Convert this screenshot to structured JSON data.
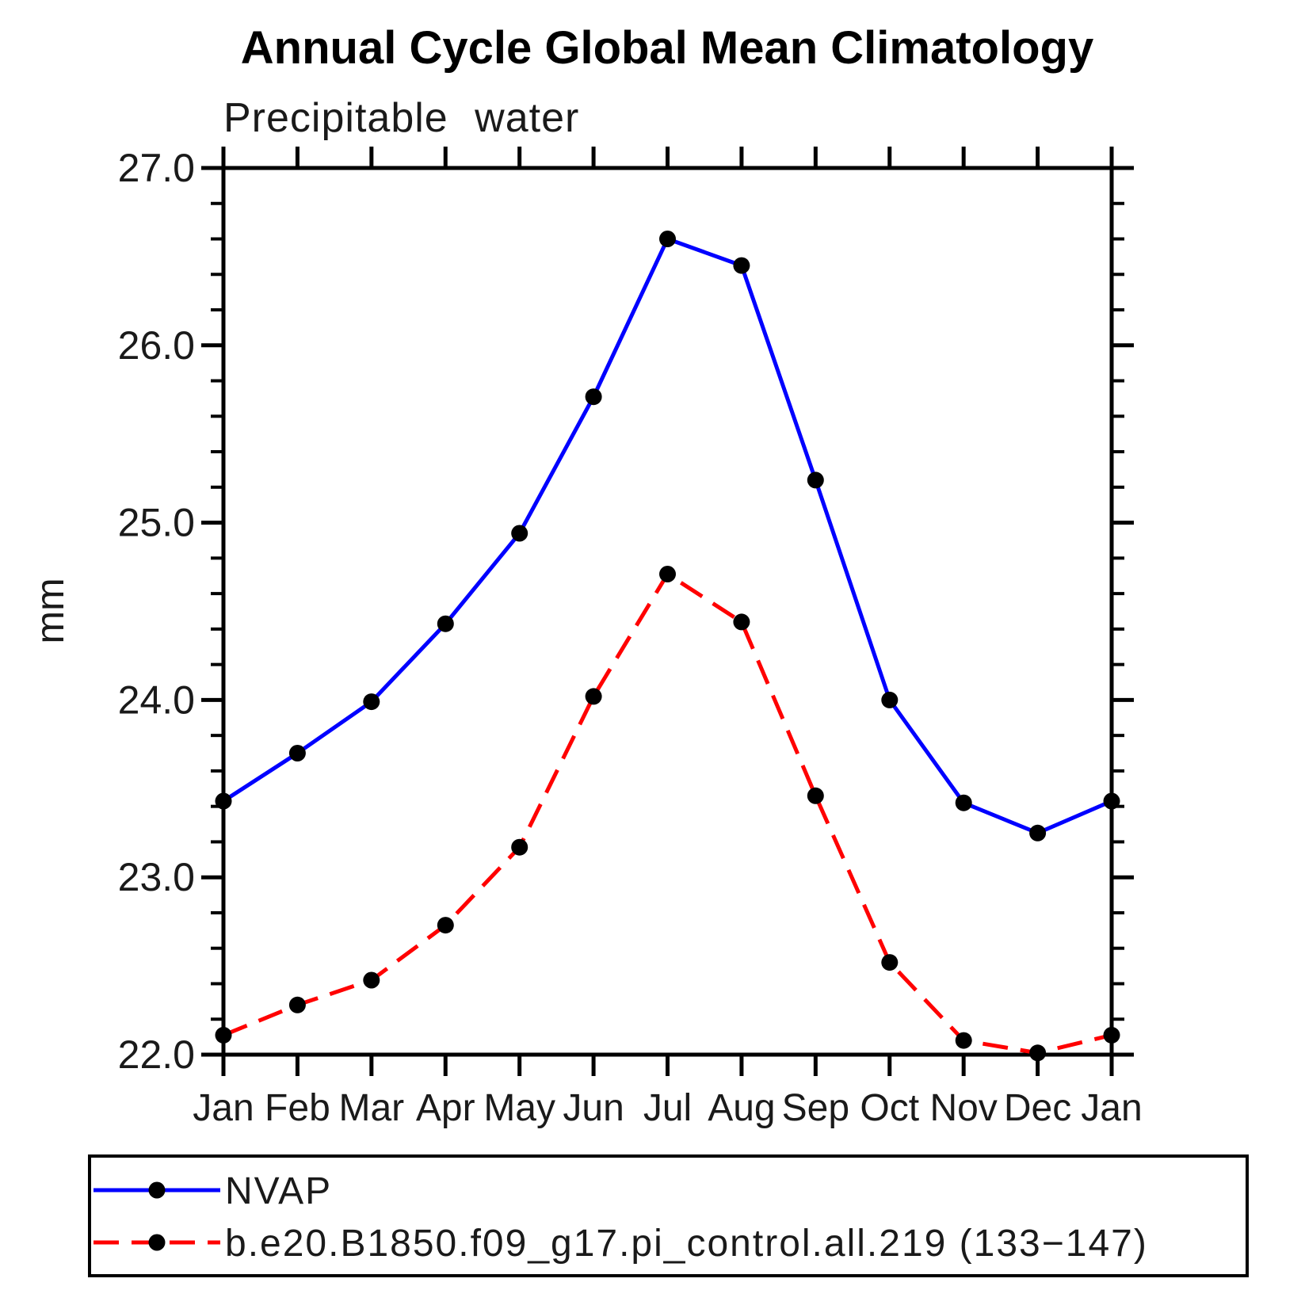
{
  "title": "Annual Cycle Global Mean Climatology",
  "subtitle": "Precipitable water",
  "y_axis_label": "mm",
  "colors": {
    "frame": "#000000",
    "marker": "#000000",
    "series1": "#0000ff",
    "series2": "#ff0000",
    "background": "#ffffff"
  },
  "chart_data": {
    "type": "line",
    "title": "Annual Cycle Global Mean Climatology",
    "subtitle": "Precipitable water",
    "xlabel": "",
    "ylabel": "mm",
    "categories": [
      "Jan",
      "Feb",
      "Mar",
      "Apr",
      "May",
      "Jun",
      "Jul",
      "Aug",
      "Sep",
      "Oct",
      "Nov",
      "Dec",
      "Jan"
    ],
    "ylim": [
      22.0,
      27.0
    ],
    "ytick_major": [
      22.0,
      23.0,
      24.0,
      25.0,
      26.0,
      27.0
    ],
    "ytick_labels": [
      "22.0",
      "23.0",
      "24.0",
      "25.0",
      "26.0",
      "27.0"
    ],
    "ytick_minor_step": 0.2,
    "grid": false,
    "legend_position": "bottom-left",
    "marker": "filled-circle",
    "series": [
      {
        "name": "NVAP",
        "color": "#0000ff",
        "line_style": "solid",
        "marker_color": "#000000",
        "values": [
          23.43,
          23.7,
          23.99,
          24.43,
          24.94,
          25.71,
          26.6,
          26.45,
          25.24,
          24.0,
          23.42,
          23.25,
          23.43
        ]
      },
      {
        "name": "b.e20.B1850.f09_g17.pi_control.all.219 (133−147)",
        "color": "#ff0000",
        "line_style": "dashed",
        "marker_color": "#000000",
        "values": [
          22.11,
          22.28,
          22.42,
          22.73,
          23.17,
          24.02,
          24.71,
          24.44,
          23.46,
          22.52,
          22.08,
          22.01,
          22.11
        ]
      }
    ]
  }
}
